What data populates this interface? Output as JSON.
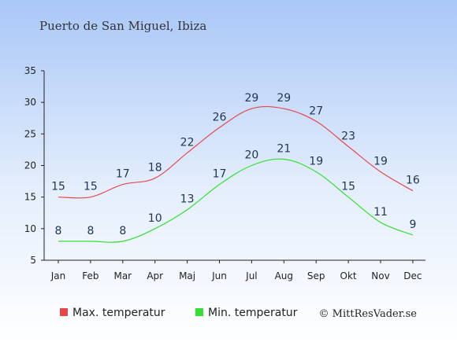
{
  "chart_data": {
    "type": "line",
    "title": "Puerto de San Miguel, Ibiza",
    "xlabel": "",
    "ylabel": "",
    "categories": [
      "Jan",
      "Feb",
      "Mar",
      "Apr",
      "Maj",
      "Jun",
      "Jul",
      "Aug",
      "Sep",
      "Okt",
      "Nov",
      "Dec"
    ],
    "yticks": [
      5,
      10,
      15,
      20,
      25,
      30,
      35
    ],
    "ylim": [
      5,
      35
    ],
    "series": [
      {
        "name": "Max. temperatur",
        "color": "#e8474a",
        "values": [
          15,
          15,
          17,
          18,
          22,
          26,
          29,
          29,
          27,
          23,
          19,
          16
        ]
      },
      {
        "name": "Min. temperatur",
        "color": "#33e033",
        "values": [
          8,
          8,
          8,
          10,
          13,
          17,
          20,
          21,
          19,
          15,
          11,
          9
        ]
      }
    ],
    "grid": false,
    "legend": "bottom",
    "credit": "© MittResVader.se"
  }
}
